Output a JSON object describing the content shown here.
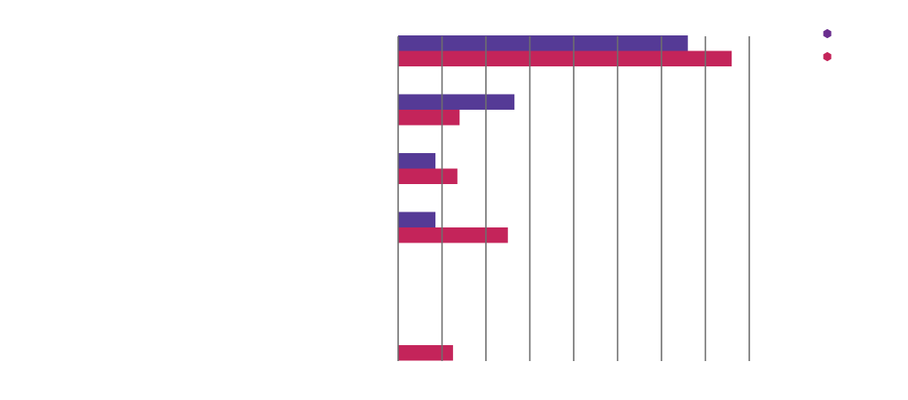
{
  "chart_data": {
    "type": "bar",
    "orientation": "horizontal",
    "title": "",
    "xlabel": "",
    "ylabel": "",
    "categories": [
      "",
      "",
      "",
      "",
      "",
      ""
    ],
    "series": [
      {
        "color": "#553a96",
        "values": [
          6.6,
          2.65,
          0.85,
          0.85,
          0,
          0
        ]
      },
      {
        "color": "#c4245a",
        "values": [
          7.6,
          1.4,
          1.35,
          2.5,
          0,
          1.25
        ]
      }
    ],
    "xlim": [
      0,
      8
    ],
    "x_ticks": [
      0,
      1,
      2,
      3,
      4,
      5,
      6,
      7,
      8
    ],
    "grid": "vertical",
    "legend": {
      "position": "top-right",
      "marker": "hexagon",
      "entries": [
        {
          "color": "#6b2f8f"
        },
        {
          "color": "#c4245a"
        }
      ]
    }
  }
}
